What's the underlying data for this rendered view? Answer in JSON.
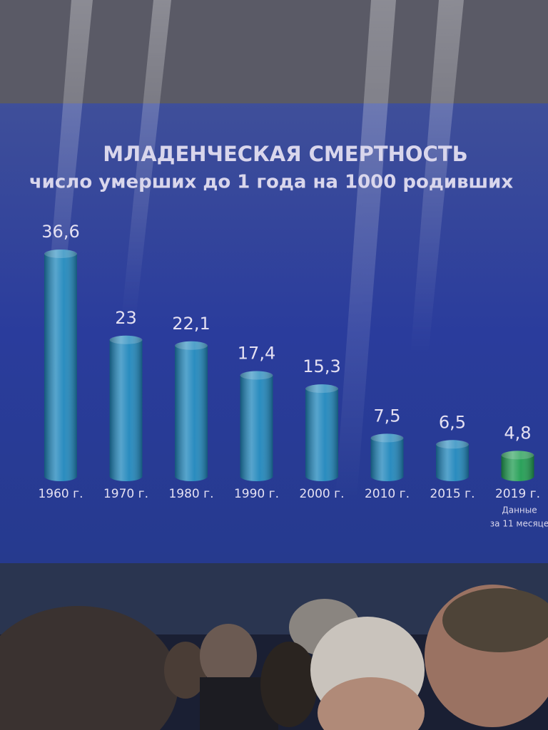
{
  "chart_data": {
    "type": "bar",
    "title": "МЛАДЕНЧЕСКАЯ СМЕРТНОСТЬ",
    "subtitle": "число умерших до 1 года на 1000 родивших",
    "categories": [
      "1960 г.",
      "1970 г.",
      "1980 г.",
      "1990 г.",
      "2000 г.",
      "2010 г.",
      "2015 г.",
      "2019 г."
    ],
    "values": [
      36.6,
      23,
      22.1,
      17.4,
      15.3,
      7.5,
      6.5,
      4.8
    ],
    "value_labels": [
      "36,6",
      "23",
      "22,1",
      "17,4",
      "15,3",
      "7,5",
      "6,5",
      "4,8"
    ],
    "colors": [
      "#1e8fc0",
      "#1e8fc0",
      "#1e8fc0",
      "#1e8fc0",
      "#1e8fc0",
      "#1e8fc0",
      "#1e8fc0",
      "#1fa84a"
    ],
    "annotation": [
      "Данные",
      "за 11 месяце"
    ]
  }
}
